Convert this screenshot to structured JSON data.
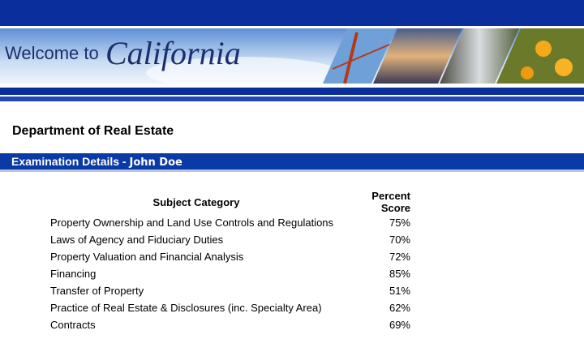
{
  "banner": {
    "welcome": "Welcome to",
    "state": "California"
  },
  "header": {
    "title": "Department of Real Estate"
  },
  "section": {
    "title": "Examination Details - ",
    "name": "John Doe"
  },
  "table": {
    "columns": [
      "Subject Category",
      "Percent Score"
    ],
    "rows": [
      [
        "Property Ownership and Land Use Controls and Regulations",
        "75%"
      ],
      [
        "Laws of Agency and Fiduciary Duties",
        "70%"
      ],
      [
        "Property Valuation and Financial Analysis",
        "72%"
      ],
      [
        "Financing",
        "85%"
      ],
      [
        "Transfer of Property",
        "51%"
      ],
      [
        "Practice of Real Estate & Disclosures (inc. Specialty Area)",
        "62%"
      ],
      [
        "Contracts",
        "69%"
      ]
    ]
  }
}
